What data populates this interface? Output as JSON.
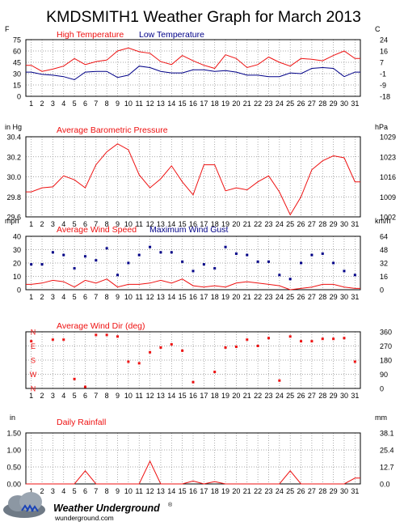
{
  "page_title": "KMDSMITH1 Weather Graph for March 2013",
  "logo": {
    "brand": "Weather Underground",
    "reg": "®",
    "site": "wunderground.com"
  },
  "colors": {
    "red": "#ee1111",
    "blue": "#000088",
    "grid": "#8a8a8a",
    "bg": "#ffffff"
  },
  "chart_data": [
    {
      "id": "temperature",
      "type": "line",
      "title": "",
      "legend": [
        "High Temperature",
        "Low Temperature"
      ],
      "left_unit": "F",
      "right_unit": "C",
      "x": [
        1,
        2,
        3,
        4,
        5,
        6,
        7,
        8,
        9,
        10,
        11,
        12,
        13,
        14,
        15,
        16,
        17,
        18,
        19,
        20,
        21,
        22,
        23,
        24,
        25,
        26,
        27,
        28,
        29,
        30,
        31
      ],
      "ylim": [
        0,
        75
      ],
      "yticks": [
        "0",
        "15",
        "30",
        "45",
        "60",
        "75"
      ],
      "right_ticks": [
        "-18",
        "-9",
        "-1",
        "7",
        "16",
        "24"
      ],
      "series": [
        {
          "name": "High Temperature",
          "color": "#ee1111",
          "values": [
            41,
            33,
            36,
            40,
            50,
            42,
            46,
            48,
            60,
            64,
            59,
            57,
            46,
            42,
            54,
            47,
            41,
            37,
            55,
            50,
            38,
            42,
            52,
            45,
            40,
            50,
            49,
            47,
            54,
            60,
            50
          ]
        },
        {
          "name": "Low Temperature",
          "color": "#000088",
          "values": [
            32,
            29,
            28,
            26,
            22,
            32,
            33,
            33,
            25,
            28,
            40,
            38,
            33,
            31,
            31,
            35,
            35,
            33,
            34,
            32,
            28,
            28,
            26,
            26,
            31,
            30,
            37,
            38,
            37,
            26,
            32
          ]
        }
      ]
    },
    {
      "id": "pressure",
      "type": "line",
      "title": "",
      "legend": [
        "Average Barometric Pressure"
      ],
      "left_unit": "in Hg",
      "right_unit": "hPa",
      "x": [
        1,
        2,
        3,
        4,
        5,
        6,
        7,
        8,
        9,
        10,
        11,
        12,
        13,
        14,
        15,
        16,
        17,
        18,
        19,
        20,
        21,
        22,
        23,
        24,
        25,
        26,
        27,
        28,
        29,
        30,
        31
      ],
      "ylim": [
        29.6,
        30.4
      ],
      "yticks": [
        "29.6",
        "29.8",
        "30.0",
        "30.2",
        "30.4"
      ],
      "right_ticks": [
        "1002",
        "1009",
        "1016",
        "1023",
        "1029"
      ],
      "series": [
        {
          "name": "Average Barometric Pressure",
          "color": "#ee1111",
          "values": [
            29.85,
            29.89,
            29.9,
            30.01,
            29.97,
            29.89,
            30.12,
            30.25,
            30.33,
            30.27,
            30.02,
            29.89,
            29.98,
            30.11,
            29.95,
            29.82,
            30.12,
            30.12,
            29.86,
            29.89,
            29.87,
            29.95,
            30.01,
            29.85,
            29.62,
            29.8,
            30.07,
            30.16,
            30.21,
            30.19,
            29.95
          ]
        }
      ]
    },
    {
      "id": "wind_speed",
      "type": "line",
      "title": "",
      "legend": [
        "Average Wind Speed",
        "Maximum Wind Gust"
      ],
      "left_unit": "mph",
      "right_unit": "km/h",
      "x": [
        1,
        2,
        3,
        4,
        5,
        6,
        7,
        8,
        9,
        10,
        11,
        12,
        13,
        14,
        15,
        16,
        17,
        18,
        19,
        20,
        21,
        22,
        23,
        24,
        25,
        26,
        27,
        28,
        29,
        30,
        31
      ],
      "ylim": [
        0,
        40
      ],
      "yticks": [
        "0",
        "10",
        "20",
        "30",
        "40"
      ],
      "right_ticks": [
        "0",
        "16",
        "32",
        "48",
        "64"
      ],
      "series": [
        {
          "name": "Average Wind Speed",
          "color": "#ee1111",
          "values": [
            4,
            5,
            7,
            6,
            2,
            7,
            5,
            8,
            2,
            4,
            4,
            5,
            7,
            5,
            8,
            3,
            2,
            3,
            2,
            5,
            6,
            5,
            4,
            3,
            0,
            1,
            2,
            4,
            4,
            2,
            1
          ]
        },
        {
          "name": "Maximum Wind Gust",
          "color": "#000088",
          "values": [
            19,
            19,
            28,
            26,
            16,
            25,
            22,
            31,
            11,
            20,
            26,
            32,
            28,
            28,
            21,
            14,
            19,
            16,
            32,
            27,
            26,
            21,
            21,
            11,
            8,
            20,
            26,
            27,
            20,
            14,
            11
          ]
        }
      ]
    },
    {
      "id": "wind_dir",
      "type": "scatter",
      "title": "",
      "legend": [
        "Average Wind Dir (deg)"
      ],
      "left_unit": "",
      "right_unit": "",
      "x": [
        1,
        2,
        3,
        4,
        5,
        6,
        7,
        8,
        9,
        10,
        11,
        12,
        13,
        14,
        15,
        16,
        17,
        18,
        19,
        20,
        21,
        22,
        23,
        24,
        25,
        26,
        27,
        28,
        29,
        30,
        31
      ],
      "ylim": [
        0,
        360
      ],
      "yticks": [],
      "left_compass": [
        "N",
        "W",
        "S",
        "E",
        "N"
      ],
      "right_ticks": [
        "0",
        "90",
        "180",
        "270",
        "360"
      ],
      "series": [
        {
          "name": "Average Wind Dir (deg)",
          "color": "#ee1111",
          "values": [
            300,
            null,
            310,
            310,
            60,
            10,
            340,
            340,
            330,
            170,
            160,
            230,
            260,
            280,
            240,
            40,
            null,
            105,
            260,
            265,
            310,
            270,
            320,
            50,
            330,
            300,
            300,
            315,
            315,
            320,
            170
          ]
        }
      ]
    },
    {
      "id": "rainfall",
      "type": "line",
      "title": "",
      "legend": [
        "Daily Rainfall"
      ],
      "left_unit": "in",
      "right_unit": "mm",
      "x": [
        1,
        2,
        3,
        4,
        5,
        6,
        7,
        8,
        9,
        10,
        11,
        12,
        13,
        14,
        15,
        16,
        17,
        18,
        19,
        20,
        21,
        22,
        23,
        24,
        25,
        26,
        27,
        28,
        29,
        30,
        31
      ],
      "ylim": [
        0,
        1.75
      ],
      "yticks": [
        "0.00",
        "0.50",
        "1.00",
        "1.50"
      ],
      "right_ticks": [
        "0.0",
        "12.7",
        "25.4",
        "38.1"
      ],
      "series": [
        {
          "name": "Daily Rainfall",
          "color": "#ee1111",
          "values": [
            0,
            0,
            0,
            0,
            0,
            0.45,
            0,
            0,
            0,
            0,
            0,
            0.78,
            0,
            0,
            0,
            0.1,
            0,
            0.08,
            0,
            0,
            0,
            0,
            0,
            0,
            0.45,
            0,
            0,
            0,
            0,
            0,
            0.2
          ]
        }
      ]
    }
  ]
}
